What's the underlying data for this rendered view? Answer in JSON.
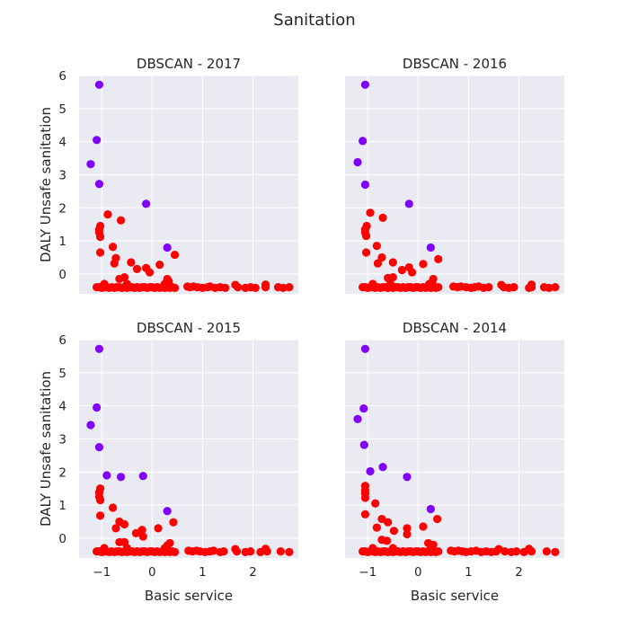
{
  "figure": {
    "suptitle": "Sanitation",
    "xlabel": "Basic service",
    "ylabel": "DALY Unsafe sanitation",
    "background": "#eaeaf2",
    "grid_color": "#ffffff"
  },
  "colors": {
    "purple": "#8000ff",
    "red": "#ff0000"
  },
  "chart_data": [
    {
      "type": "scatter",
      "title": "DBSCAN - 2017",
      "xlim": [
        -1.45,
        2.9
      ],
      "ylim": [
        -0.6,
        6.0
      ],
      "xticks": [
        -1,
        0,
        1,
        2
      ],
      "xtick_labels": [
        "−1",
        "0",
        "1",
        "2"
      ],
      "yticks": [
        0,
        1,
        2,
        3,
        4,
        5,
        6
      ],
      "grid": true,
      "outliers": [
        [
          -1.05,
          5.72
        ],
        [
          -1.1,
          4.05
        ],
        [
          -1.22,
          3.32
        ],
        [
          -1.05,
          2.72
        ],
        [
          -0.12,
          2.12
        ],
        [
          0.3,
          0.8
        ]
      ],
      "clustered": [
        [
          -1.03,
          1.45
        ],
        [
          -1.05,
          1.35
        ],
        [
          -1.05,
          1.25
        ],
        [
          -1.03,
          1.12
        ],
        [
          -1.03,
          0.65
        ],
        [
          -0.88,
          1.8
        ],
        [
          -0.62,
          1.62
        ],
        [
          -0.78,
          0.82
        ],
        [
          -0.72,
          0.48
        ],
        [
          -0.75,
          0.32
        ],
        [
          -0.65,
          -0.15
        ],
        [
          -0.55,
          -0.1
        ],
        [
          -0.42,
          0.35
        ],
        [
          -0.3,
          0.15
        ],
        [
          -0.12,
          0.18
        ],
        [
          -0.05,
          0.05
        ],
        [
          0.15,
          0.28
        ],
        [
          0.3,
          -0.15
        ],
        [
          0.33,
          -0.22
        ],
        [
          0.45,
          0.58
        ],
        [
          -0.95,
          -0.3
        ],
        [
          -0.5,
          -0.3
        ],
        [
          0.25,
          -0.3
        ],
        [
          1.65,
          -0.33
        ],
        [
          2.25,
          -0.32
        ],
        [
          -1.1,
          -0.4
        ],
        [
          -1.05,
          -0.4
        ],
        [
          -1.0,
          -0.42
        ],
        [
          -0.95,
          -0.4
        ],
        [
          -0.9,
          -0.4
        ],
        [
          -0.85,
          -0.42
        ],
        [
          -0.8,
          -0.4
        ],
        [
          -0.75,
          -0.42
        ],
        [
          -0.7,
          -0.4
        ],
        [
          -0.65,
          -0.4
        ],
        [
          -0.6,
          -0.42
        ],
        [
          -0.55,
          -0.4
        ],
        [
          -0.5,
          -0.42
        ],
        [
          -0.45,
          -0.4
        ],
        [
          -0.4,
          -0.4
        ],
        [
          -0.35,
          -0.42
        ],
        [
          -0.3,
          -0.4
        ],
        [
          -0.25,
          -0.42
        ],
        [
          -0.2,
          -0.4
        ],
        [
          -0.15,
          -0.4
        ],
        [
          -0.1,
          -0.42
        ],
        [
          -0.05,
          -0.4
        ],
        [
          0.0,
          -0.4
        ],
        [
          0.05,
          -0.42
        ],
        [
          0.1,
          -0.4
        ],
        [
          0.15,
          -0.42
        ],
        [
          0.2,
          -0.4
        ],
        [
          0.25,
          -0.42
        ],
        [
          0.3,
          -0.4
        ],
        [
          0.35,
          -0.42
        ],
        [
          0.4,
          -0.4
        ],
        [
          0.45,
          -0.42
        ],
        [
          0.7,
          -0.38
        ],
        [
          0.75,
          -0.4
        ],
        [
          0.82,
          -0.38
        ],
        [
          0.9,
          -0.4
        ],
        [
          1.0,
          -0.42
        ],
        [
          1.1,
          -0.4
        ],
        [
          1.15,
          -0.38
        ],
        [
          1.25,
          -0.42
        ],
        [
          1.35,
          -0.4
        ],
        [
          1.45,
          -0.42
        ],
        [
          1.7,
          -0.4
        ],
        [
          1.85,
          -0.42
        ],
        [
          1.95,
          -0.4
        ],
        [
          2.05,
          -0.42
        ],
        [
          2.25,
          -0.4
        ],
        [
          2.5,
          -0.4
        ],
        [
          2.6,
          -0.42
        ],
        [
          2.72,
          -0.4
        ]
      ]
    },
    {
      "type": "scatter",
      "title": "DBSCAN - 2016",
      "xlim": [
        -1.45,
        2.9
      ],
      "ylim": [
        -0.6,
        6.0
      ],
      "xticks": [
        -1,
        0,
        1,
        2
      ],
      "xtick_labels": [
        "−1",
        "0",
        "1",
        "2"
      ],
      "yticks": [
        0,
        1,
        2,
        3,
        4,
        5,
        6
      ],
      "grid": true,
      "outliers": [
        [
          -1.05,
          5.72
        ],
        [
          -1.1,
          4.02
        ],
        [
          -1.2,
          3.38
        ],
        [
          -1.05,
          2.7
        ],
        [
          -0.18,
          2.12
        ],
        [
          0.25,
          0.8
        ]
      ],
      "clustered": [
        [
          -1.02,
          1.45
        ],
        [
          -1.05,
          1.35
        ],
        [
          -1.05,
          1.25
        ],
        [
          -1.03,
          1.15
        ],
        [
          -1.03,
          0.65
        ],
        [
          -0.95,
          1.85
        ],
        [
          -0.7,
          1.7
        ],
        [
          -0.82,
          0.85
        ],
        [
          -0.72,
          0.5
        ],
        [
          -0.8,
          0.32
        ],
        [
          -0.6,
          -0.12
        ],
        [
          -0.5,
          -0.1
        ],
        [
          -0.5,
          0.35
        ],
        [
          -0.32,
          0.12
        ],
        [
          -0.18,
          0.2
        ],
        [
          -0.12,
          0.05
        ],
        [
          0.1,
          0.3
        ],
        [
          0.3,
          -0.15
        ],
        [
          0.28,
          -0.25
        ],
        [
          0.4,
          0.45
        ],
        [
          -0.9,
          -0.3
        ],
        [
          -0.55,
          -0.3
        ],
        [
          0.22,
          -0.3
        ],
        [
          1.65,
          -0.33
        ],
        [
          2.25,
          -0.32
        ],
        [
          -1.1,
          -0.4
        ],
        [
          -1.05,
          -0.4
        ],
        [
          -1.0,
          -0.42
        ],
        [
          -0.95,
          -0.4
        ],
        [
          -0.9,
          -0.4
        ],
        [
          -0.85,
          -0.42
        ],
        [
          -0.8,
          -0.4
        ],
        [
          -0.75,
          -0.42
        ],
        [
          -0.7,
          -0.4
        ],
        [
          -0.65,
          -0.4
        ],
        [
          -0.6,
          -0.42
        ],
        [
          -0.55,
          -0.4
        ],
        [
          -0.5,
          -0.42
        ],
        [
          -0.45,
          -0.4
        ],
        [
          -0.4,
          -0.4
        ],
        [
          -0.35,
          -0.42
        ],
        [
          -0.3,
          -0.4
        ],
        [
          -0.25,
          -0.42
        ],
        [
          -0.2,
          -0.4
        ],
        [
          -0.15,
          -0.4
        ],
        [
          -0.1,
          -0.42
        ],
        [
          -0.05,
          -0.4
        ],
        [
          0.0,
          -0.4
        ],
        [
          0.05,
          -0.42
        ],
        [
          0.1,
          -0.4
        ],
        [
          0.15,
          -0.42
        ],
        [
          0.2,
          -0.4
        ],
        [
          0.25,
          -0.42
        ],
        [
          0.3,
          -0.4
        ],
        [
          0.35,
          -0.42
        ],
        [
          0.4,
          -0.4
        ],
        [
          0.7,
          -0.38
        ],
        [
          0.78,
          -0.4
        ],
        [
          0.85,
          -0.38
        ],
        [
          0.95,
          -0.4
        ],
        [
          1.05,
          -0.42
        ],
        [
          1.12,
          -0.4
        ],
        [
          1.2,
          -0.38
        ],
        [
          1.3,
          -0.42
        ],
        [
          1.4,
          -0.4
        ],
        [
          1.7,
          -0.4
        ],
        [
          1.8,
          -0.42
        ],
        [
          1.9,
          -0.4
        ],
        [
          2.2,
          -0.42
        ],
        [
          2.25,
          -0.4
        ],
        [
          2.5,
          -0.4
        ],
        [
          2.6,
          -0.42
        ],
        [
          2.72,
          -0.4
        ]
      ]
    },
    {
      "type": "scatter",
      "title": "DBSCAN - 2015",
      "xlim": [
        -1.45,
        2.9
      ],
      "ylim": [
        -0.6,
        6.0
      ],
      "xticks": [
        -1,
        0,
        1,
        2
      ],
      "xtick_labels": [
        "−1",
        "0",
        "1",
        "2"
      ],
      "yticks": [
        0,
        1,
        2,
        3,
        4,
        5,
        6
      ],
      "grid": true,
      "outliers": [
        [
          -1.05,
          5.72
        ],
        [
          -1.1,
          3.95
        ],
        [
          -1.22,
          3.42
        ],
        [
          -1.05,
          2.75
        ],
        [
          -0.9,
          1.9
        ],
        [
          -0.62,
          1.85
        ],
        [
          -0.18,
          1.88
        ],
        [
          0.3,
          0.82
        ]
      ],
      "clustered": [
        [
          -1.03,
          1.5
        ],
        [
          -1.05,
          1.38
        ],
        [
          -1.05,
          1.25
        ],
        [
          -1.03,
          1.15
        ],
        [
          -1.03,
          0.68
        ],
        [
          -0.78,
          0.92
        ],
        [
          -0.65,
          0.5
        ],
        [
          -0.72,
          0.3
        ],
        [
          -0.55,
          0.42
        ],
        [
          -0.65,
          -0.12
        ],
        [
          -0.55,
          -0.12
        ],
        [
          -0.32,
          0.15
        ],
        [
          -0.2,
          0.25
        ],
        [
          -0.18,
          0.05
        ],
        [
          0.12,
          0.3
        ],
        [
          0.35,
          -0.15
        ],
        [
          0.3,
          -0.22
        ],
        [
          0.42,
          0.48
        ],
        [
          -0.95,
          -0.3
        ],
        [
          -0.5,
          -0.3
        ],
        [
          0.25,
          -0.3
        ],
        [
          1.65,
          -0.33
        ],
        [
          2.25,
          -0.32
        ],
        [
          -1.1,
          -0.4
        ],
        [
          -1.05,
          -0.4
        ],
        [
          -1.0,
          -0.42
        ],
        [
          -0.95,
          -0.4
        ],
        [
          -0.9,
          -0.4
        ],
        [
          -0.85,
          -0.42
        ],
        [
          -0.8,
          -0.4
        ],
        [
          -0.75,
          -0.42
        ],
        [
          -0.7,
          -0.4
        ],
        [
          -0.65,
          -0.4
        ],
        [
          -0.6,
          -0.42
        ],
        [
          -0.55,
          -0.4
        ],
        [
          -0.5,
          -0.42
        ],
        [
          -0.45,
          -0.4
        ],
        [
          -0.4,
          -0.4
        ],
        [
          -0.35,
          -0.42
        ],
        [
          -0.3,
          -0.4
        ],
        [
          -0.25,
          -0.42
        ],
        [
          -0.2,
          -0.4
        ],
        [
          -0.15,
          -0.4
        ],
        [
          -0.1,
          -0.42
        ],
        [
          -0.05,
          -0.4
        ],
        [
          0.0,
          -0.4
        ],
        [
          0.05,
          -0.42
        ],
        [
          0.1,
          -0.4
        ],
        [
          0.15,
          -0.42
        ],
        [
          0.2,
          -0.4
        ],
        [
          0.25,
          -0.42
        ],
        [
          0.3,
          -0.4
        ],
        [
          0.35,
          -0.42
        ],
        [
          0.4,
          -0.4
        ],
        [
          0.45,
          -0.42
        ],
        [
          0.72,
          -0.38
        ],
        [
          0.8,
          -0.4
        ],
        [
          0.88,
          -0.38
        ],
        [
          0.95,
          -0.4
        ],
        [
          1.05,
          -0.42
        ],
        [
          1.15,
          -0.4
        ],
        [
          1.22,
          -0.38
        ],
        [
          1.35,
          -0.42
        ],
        [
          1.42,
          -0.4
        ],
        [
          1.68,
          -0.4
        ],
        [
          1.85,
          -0.42
        ],
        [
          1.95,
          -0.4
        ],
        [
          2.15,
          -0.42
        ],
        [
          2.28,
          -0.4
        ],
        [
          2.55,
          -0.4
        ],
        [
          2.72,
          -0.42
        ]
      ]
    },
    {
      "type": "scatter",
      "title": "DBSCAN - 2014",
      "xlim": [
        -1.45,
        2.9
      ],
      "ylim": [
        -0.6,
        6.0
      ],
      "xticks": [
        -1,
        0,
        1,
        2
      ],
      "xtick_labels": [
        "−1",
        "0",
        "1",
        "2"
      ],
      "yticks": [
        0,
        1,
        2,
        3,
        4,
        5,
        6
      ],
      "grid": true,
      "outliers": [
        [
          -1.05,
          5.72
        ],
        [
          -1.08,
          3.92
        ],
        [
          -1.2,
          3.6
        ],
        [
          -1.07,
          2.82
        ],
        [
          -0.95,
          2.02
        ],
        [
          -0.7,
          2.15
        ],
        [
          -0.22,
          1.85
        ],
        [
          0.25,
          0.88
        ]
      ],
      "clustered": [
        [
          -1.05,
          1.58
        ],
        [
          -1.05,
          1.45
        ],
        [
          -1.05,
          1.35
        ],
        [
          -1.05,
          1.22
        ],
        [
          -1.05,
          0.72
        ],
        [
          -0.85,
          1.05
        ],
        [
          -0.72,
          0.58
        ],
        [
          -0.82,
          0.32
        ],
        [
          -0.6,
          0.48
        ],
        [
          -0.72,
          -0.05
        ],
        [
          -0.62,
          -0.08
        ],
        [
          -0.48,
          0.22
        ],
        [
          -0.22,
          0.3
        ],
        [
          -0.22,
          0.12
        ],
        [
          0.1,
          0.35
        ],
        [
          0.2,
          -0.15
        ],
        [
          0.3,
          -0.2
        ],
        [
          0.38,
          0.58
        ],
        [
          -0.9,
          -0.3
        ],
        [
          -0.5,
          -0.3
        ],
        [
          0.25,
          -0.3
        ],
        [
          1.6,
          -0.33
        ],
        [
          2.2,
          -0.32
        ],
        [
          -1.1,
          -0.4
        ],
        [
          -1.05,
          -0.4
        ],
        [
          -1.0,
          -0.42
        ],
        [
          -0.95,
          -0.4
        ],
        [
          -0.9,
          -0.4
        ],
        [
          -0.85,
          -0.42
        ],
        [
          -0.8,
          -0.4
        ],
        [
          -0.75,
          -0.42
        ],
        [
          -0.7,
          -0.4
        ],
        [
          -0.65,
          -0.4
        ],
        [
          -0.6,
          -0.42
        ],
        [
          -0.55,
          -0.4
        ],
        [
          -0.5,
          -0.42
        ],
        [
          -0.45,
          -0.4
        ],
        [
          -0.4,
          -0.4
        ],
        [
          -0.35,
          -0.42
        ],
        [
          -0.3,
          -0.4
        ],
        [
          -0.25,
          -0.42
        ],
        [
          -0.2,
          -0.4
        ],
        [
          -0.15,
          -0.4
        ],
        [
          -0.1,
          -0.42
        ],
        [
          -0.05,
          -0.4
        ],
        [
          0.0,
          -0.4
        ],
        [
          0.05,
          -0.42
        ],
        [
          0.1,
          -0.4
        ],
        [
          0.15,
          -0.42
        ],
        [
          0.2,
          -0.4
        ],
        [
          0.25,
          -0.42
        ],
        [
          0.3,
          -0.4
        ],
        [
          0.35,
          -0.42
        ],
        [
          0.4,
          -0.4
        ],
        [
          0.65,
          -0.38
        ],
        [
          0.72,
          -0.4
        ],
        [
          0.8,
          -0.38
        ],
        [
          0.88,
          -0.4
        ],
        [
          0.95,
          -0.42
        ],
        [
          1.05,
          -0.4
        ],
        [
          1.15,
          -0.38
        ],
        [
          1.25,
          -0.42
        ],
        [
          1.35,
          -0.4
        ],
        [
          1.45,
          -0.42
        ],
        [
          1.55,
          -0.4
        ],
        [
          1.72,
          -0.4
        ],
        [
          1.85,
          -0.42
        ],
        [
          1.95,
          -0.4
        ],
        [
          2.1,
          -0.42
        ],
        [
          2.25,
          -0.4
        ],
        [
          2.55,
          -0.4
        ],
        [
          2.72,
          -0.42
        ]
      ]
    }
  ]
}
